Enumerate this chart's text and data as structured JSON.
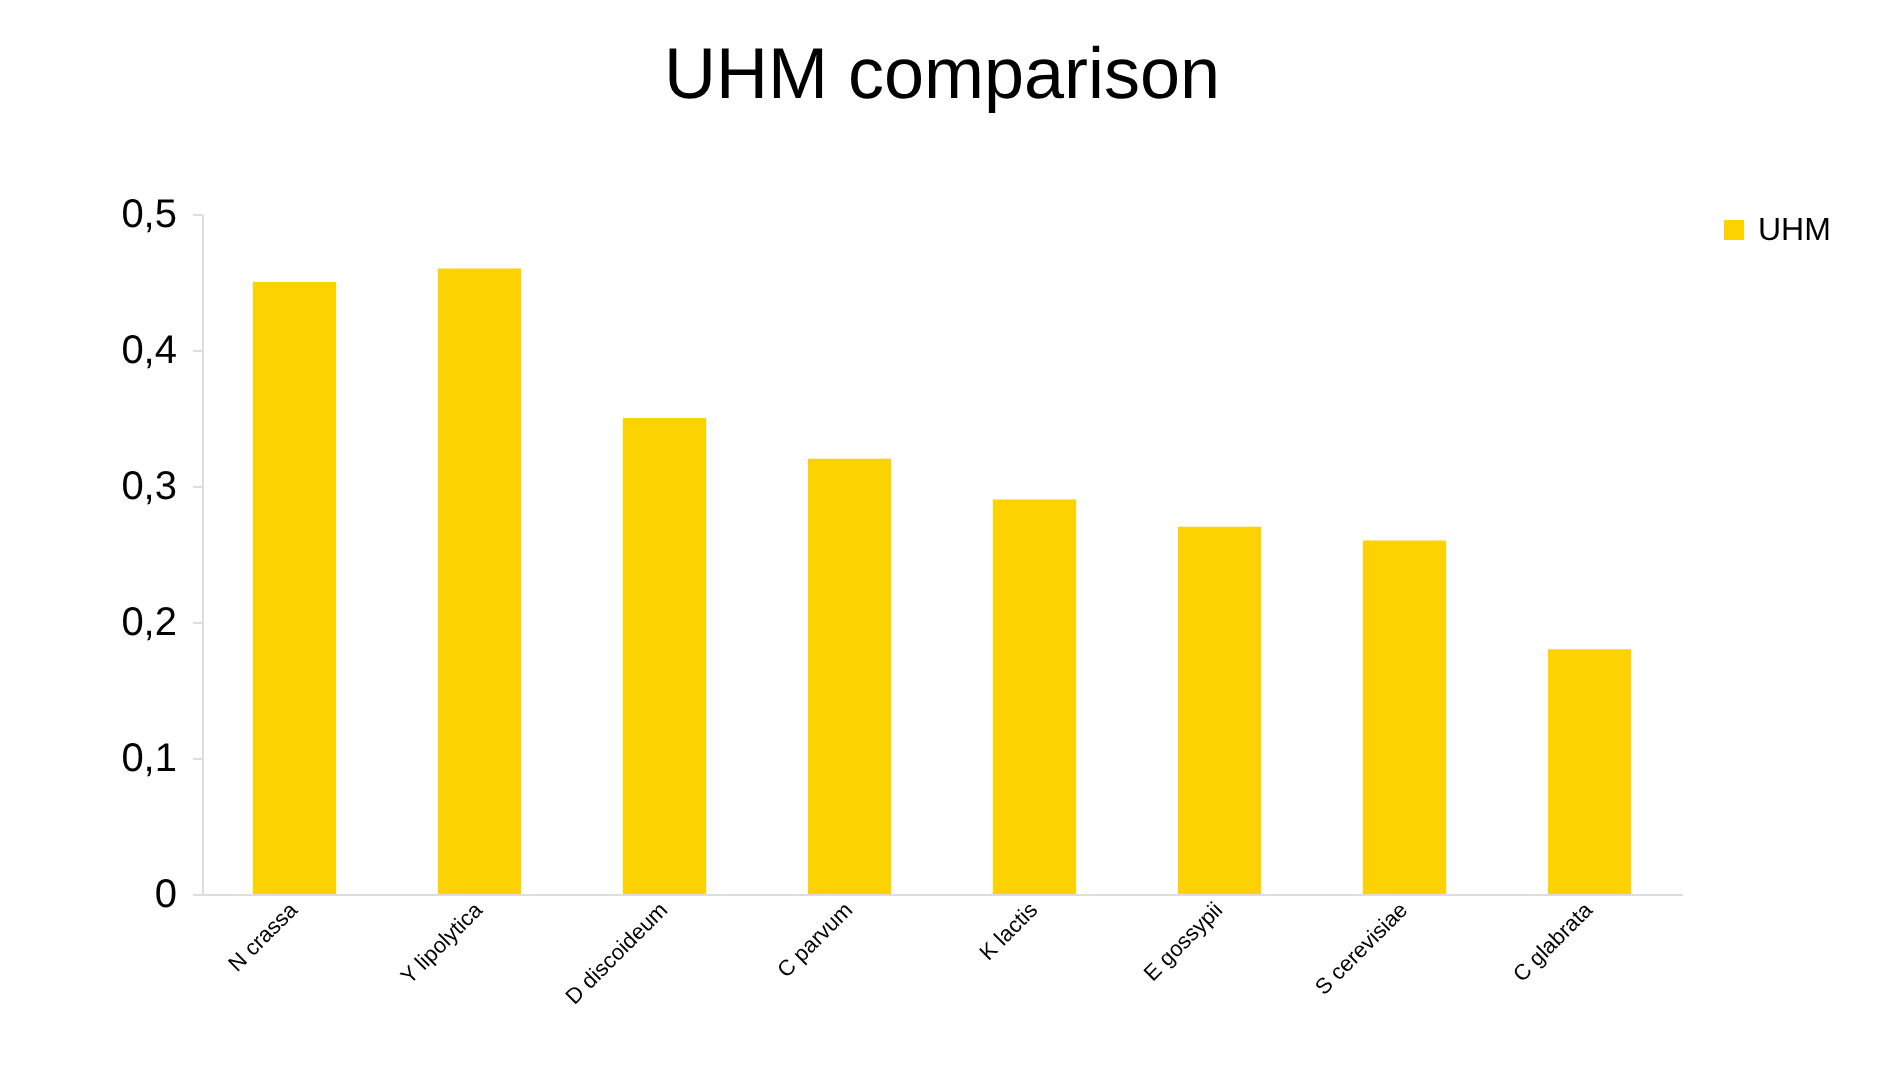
{
  "chart_data": {
    "type": "bar",
    "title": "UHM comparison",
    "categories": [
      "N crassa",
      "Y lipolytica",
      "D discoideum",
      "C parvum",
      "K lactis",
      "E gossypii",
      "S cerevisiae",
      "C glabrata"
    ],
    "series": [
      {
        "name": "UHM",
        "color": "#fcd200",
        "values": [
          0.45,
          0.46,
          0.35,
          0.32,
          0.29,
          0.27,
          0.26,
          0.18
        ]
      }
    ],
    "ylim": [
      0,
      0.5
    ],
    "yticks": [
      {
        "value": 0,
        "label": "0"
      },
      {
        "value": 0.1,
        "label": "0,1"
      },
      {
        "value": 0.2,
        "label": "0,2"
      },
      {
        "value": 0.3,
        "label": "0,3"
      },
      {
        "value": 0.4,
        "label": "0,4"
      },
      {
        "value": 0.5,
        "label": "0,5"
      }
    ],
    "grid": false,
    "legend": "right"
  }
}
